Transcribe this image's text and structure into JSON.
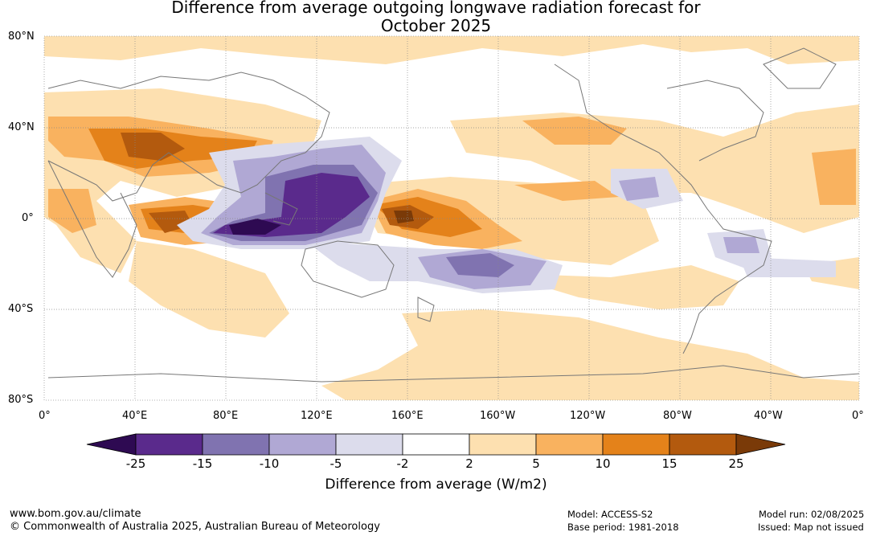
{
  "title_line1": "Difference from average outgoing longwave radiation forecast for",
  "title_line2": "October 2025",
  "lat_labels": [
    "80°N",
    "40°N",
    "0°",
    "40°S",
    "80°S"
  ],
  "lon_labels": [
    "0°",
    "40°E",
    "80°E",
    "120°E",
    "160°E",
    "160°W",
    "120°W",
    "80°W",
    "40°W",
    "0°"
  ],
  "colorbar": {
    "ticks": [
      "-25",
      "-15",
      "-10",
      "-5",
      "-2",
      "2",
      "5",
      "10",
      "15",
      "25"
    ],
    "colors": [
      "#2e0a52",
      "#5a2a8c",
      "#8073b0",
      "#b0a8d4",
      "#dcdcec",
      "#ffffff",
      "#fde0b0",
      "#f9b25f",
      "#e4821a",
      "#b35a0e",
      "#7a3a08"
    ],
    "unit_label": "Difference from average (W/m2)"
  },
  "footer": {
    "website": "www.bom.gov.au/climate",
    "copyright": "© Commonwealth of Australia 2025, Australian Bureau of Meteorology",
    "model": "Model: ACCESS-S2",
    "base_period": "Base period: 1981-2018",
    "model_run": "Model run: 02/08/2025",
    "issued": "Issued: Map not issued"
  }
}
